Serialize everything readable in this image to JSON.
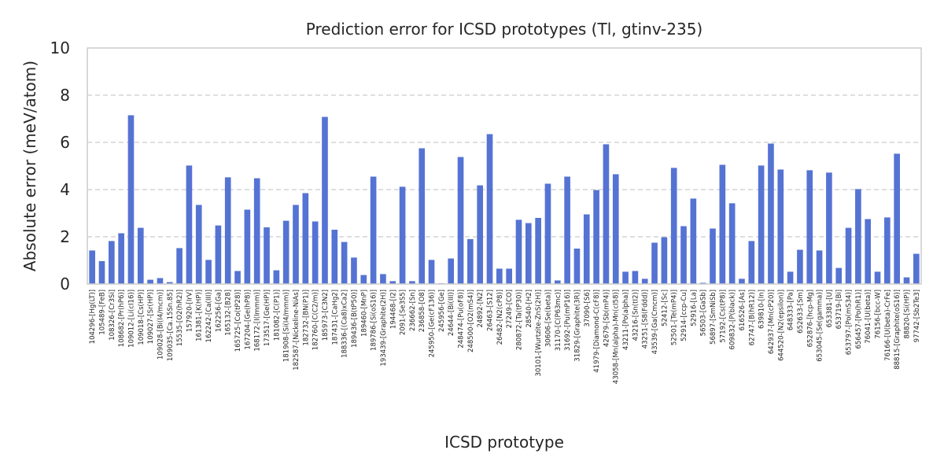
{
  "chart_data": {
    "type": "bar",
    "title": "Prediction error for ICSD prototypes (Tl, gtinv-235)",
    "xlabel": "ICSD prototype",
    "ylabel": "Absolute error (meV/atom)",
    "ylim": [
      0,
      10
    ],
    "yticks": [
      0,
      2,
      4,
      6,
      8,
      10
    ],
    "grid": "horizontal dashed",
    "color": "#5573d3",
    "categories": [
      "104296-[Hg(LT)]",
      "105489-[FeB]",
      "108326-[Cr3Si]",
      "108682-[Pr(hP6)]",
      "109012-[Li(cI16)]",
      "109018-[Cs(HP)]",
      "109027-[Sr(HP)]",
      "109028-[Bi(I4/mcm)]",
      "109035-[Ca.15Sn.85]",
      "15535-[O2(hR2)]",
      "157920-[IrV]",
      "161381-[K(HP)]",
      "162242-[Ca(III)]",
      "162256-[Ga]",
      "165132-[B28]",
      "165725-[Co(tP28)]",
      "167204-[Ge(hP8)]",
      "168172-[I(Immm)]",
      "173517-[Ge(HP)]",
      "181082-[C(P1)]",
      "181908-[Si(I4/mmm)]",
      "182587-[Nickeline-NiAs]",
      "182732-[BN(P1)]",
      "182760-[C(C2/m)]",
      "185973-[C3N2]",
      "187431-[CaHg2]",
      "188336-[(Ca8)xCa2]",
      "189436-[B(tP50)]",
      "189460-[MnP]",
      "189786-[Si(oS16)]",
      "193439-[Graphite(2H)]",
      "194468-[I2]",
      "2091-[Se3S5]",
      "236662-[Sn]",
      "236858-[O8]",
      "245950-[Ge(cF136)]",
      "245956-[Ge]",
      "24644-[Bi(III)]",
      "248474-[Pu(oF8)]",
      "248500-[O2(mS4)]",
      "24892-[N2]",
      "26463-[S12]",
      "26482-[N2(cP8)]",
      "27249-[CO]",
      "280872-[Ta(tP30)]",
      "28540-[H2]",
      "30101-[Wurtzite-ZnS(2H)]",
      "30606-[Se(beta)]",
      "31170-[C(P63mc)]",
      "31692-[Pu(mP16)]",
      "31829-[Graphite(3R)]",
      "37090-[S6]",
      "41979-[Diamond-C(cF8)]",
      "42679-[Sb(mP4)]",
      "43058-[Mn(alpha)-Mn(cI58)]",
      "43211-[Po(alpha)]",
      "43216-[Sn(tI2)]",
      "43251-[S8(Fddd)]",
      "43539-[Ga(Cmcm)]",
      "52412-[Sc]",
      "52501-[Te(mP4)]",
      "52914-[ccp-Cu]",
      "52916-[La]",
      "56503-[GaSb]",
      "56897-[SmNiSb]",
      "57192-[Cs(tP8)]",
      "609832-[P(black)]",
      "616526-[As]",
      "62747-[B(hR12)]",
      "639810-[In]",
      "642937-[Mn(cP20)]",
      "644520-[N2(epsilon)]",
      "648333-[Pa]",
      "652633-[Sm]",
      "652876-[hcp-Mg]",
      "653045-[Se(gamma)]",
      "653381-[U]",
      "653719-[Bi]",
      "653797-[Po(mS34)]",
      "656457-[Po(hR1)]",
      "76041-[U(beta)]",
      "76156-[bcc-W]",
      "76166-[U(beta)-CrFe]",
      "88815-[Graphite(oS16)]",
      "88820-[Si(HP)]",
      "97742-[Sb2Te3]"
    ],
    "values": [
      1.42,
      0.97,
      1.82,
      2.15,
      7.15,
      2.38,
      0.18,
      0.25,
      0.08,
      1.52,
      5.02,
      3.35,
      1.02,
      2.48,
      4.52,
      0.55,
      3.15,
      4.48,
      2.4,
      0.58,
      2.68,
      3.35,
      3.85,
      2.65,
      7.08,
      2.3,
      1.78,
      1.12,
      0.38,
      4.55,
      0.42,
      0.12,
      4.12,
      0.12,
      5.75,
      1.02,
      0.03,
      1.08,
      5.38,
      1.9,
      4.18,
      6.35,
      0.65,
      0.65,
      2.72,
      2.58,
      2.8,
      4.25,
      0.15,
      4.55,
      1.5,
      2.95,
      3.98,
      5.92,
      4.65,
      0.52,
      0.55,
      0.22,
      1.75,
      1.98,
      4.92,
      2.45,
      3.62,
      0.05,
      2.35,
      5.05,
      3.42,
      0.22,
      1.82,
      5.02,
      5.95,
      4.85,
      0.52,
      1.45,
      4.82,
      1.42,
      4.72,
      0.68,
      2.38,
      4.02,
      2.75,
      0.52,
      2.82,
      5.52,
      0.28,
      1.28
    ]
  }
}
